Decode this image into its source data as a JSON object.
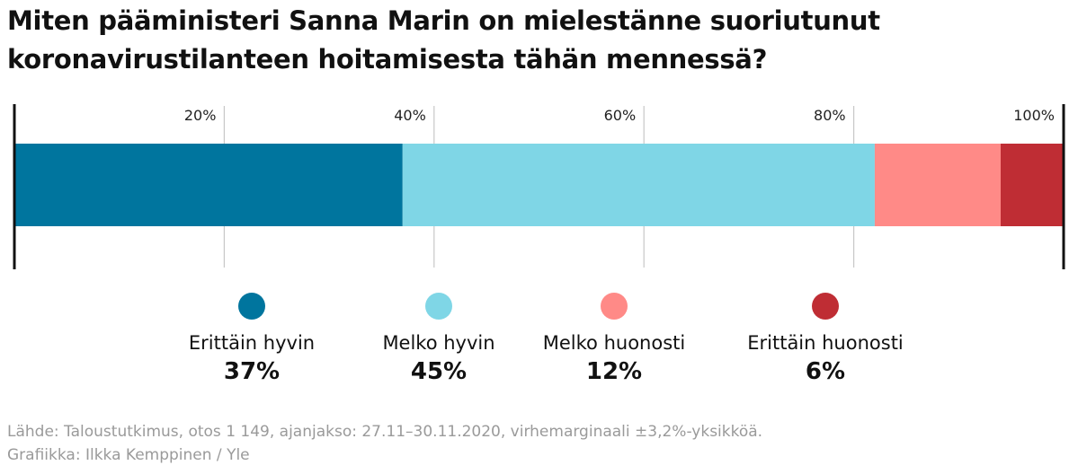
{
  "title_line1": "Miten pääministeri Sanna Marin on mielestänne suoriutunut",
  "title_line2": "koronavirustilanteen hoitamisesta tähän mennessä?",
  "chart_data": {
    "type": "bar",
    "orientation": "horizontal-stacked",
    "xlim": [
      0,
      100
    ],
    "tick_values": [
      20,
      40,
      60,
      80,
      100
    ],
    "tick_labels": [
      "20%",
      "40%",
      "60%",
      "80%",
      "100%"
    ],
    "grid": true,
    "legend_position": "bottom",
    "series": [
      {
        "name": "Erittäin hyvin",
        "value": 37,
        "label": "37%",
        "color": "#00759e"
      },
      {
        "name": "Melko hyvin",
        "value": 45,
        "label": "45%",
        "color": "#7fd6e6"
      },
      {
        "name": "Melko huonosti",
        "value": 12,
        "label": "12%",
        "color": "#ff8a87"
      },
      {
        "name": "Erittäin huonosti",
        "value": 6,
        "label": "6%",
        "color": "#bf2d34"
      }
    ]
  },
  "footer": {
    "source": "Lähde: Taloustutkimus, otos 1 149, ajanjakso: 27.11–30.11.2020, virhemarginaali ±3,2%-yksikköä.",
    "credit": "Grafiikka: Ilkka Kemppinen / Yle"
  }
}
